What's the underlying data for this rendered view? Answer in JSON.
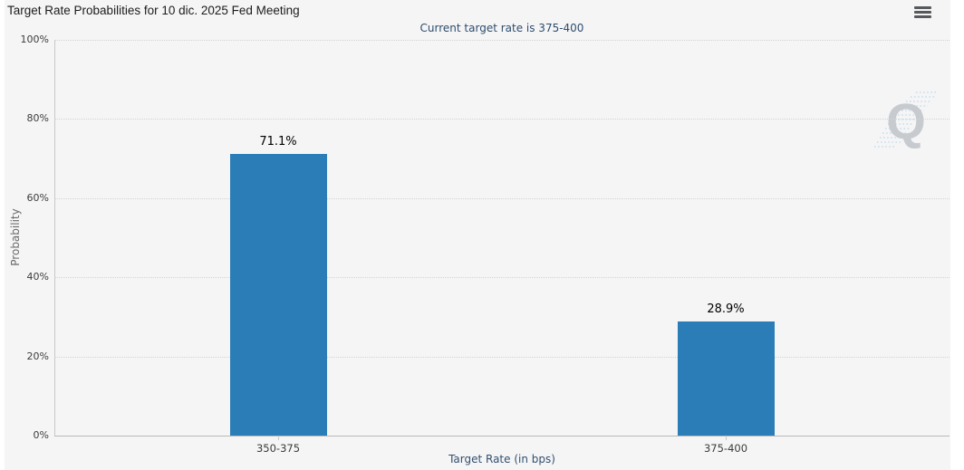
{
  "header": {
    "title": "Target Rate Probabilities for 10 dic. 2025 Fed Meeting",
    "menu_icon": "hamburger-menu"
  },
  "chart_data": {
    "type": "bar",
    "title": "Target Rate Probabilities for 10 dic. 2025 Fed Meeting",
    "subtitle": "Current target rate is 375-400",
    "categories": [
      "350-375",
      "375-400"
    ],
    "values": [
      71.1,
      28.9
    ],
    "value_labels": [
      "71.1%",
      "28.9%"
    ],
    "xlabel": "Target Rate (in bps)",
    "ylabel": "Probability",
    "ylim": [
      0,
      100
    ],
    "yticks": [
      0,
      20,
      40,
      60,
      80,
      100
    ],
    "ytick_labels": [
      "0%",
      "20%",
      "40%",
      "60%",
      "80%",
      "100%"
    ],
    "grid": true,
    "legend": "none",
    "colors": {
      "bar": "#2a7db6",
      "subtitle_text": "#2e4d6d",
      "axis_title_text": "#33506e",
      "panel_background": "#f5f5f6",
      "watermark_gray": "#c7cbcf",
      "watermark_blue": "#c3dcee"
    },
    "watermark_letter": "Q"
  }
}
